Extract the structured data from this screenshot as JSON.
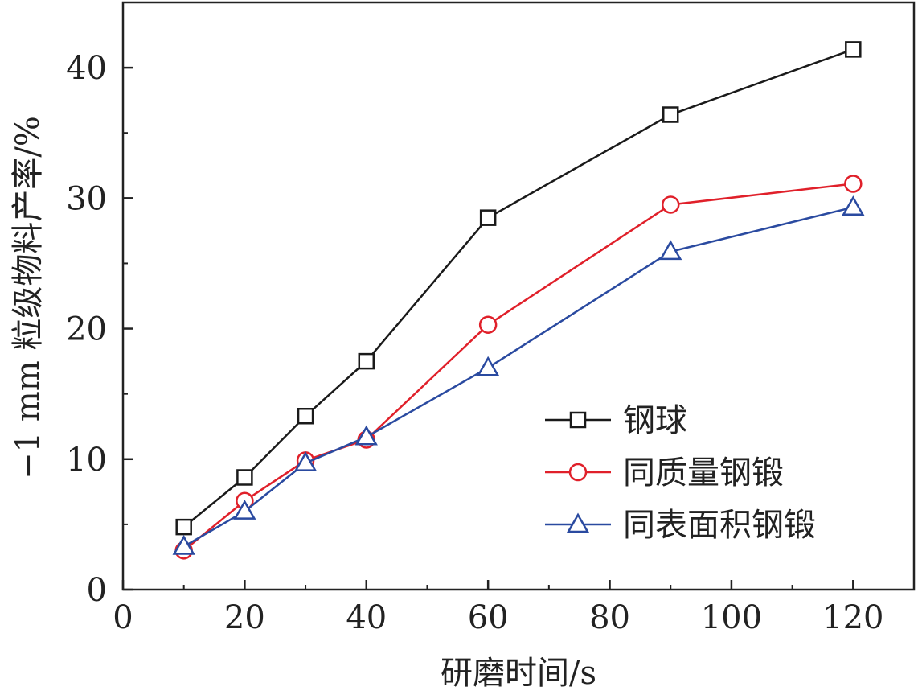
{
  "chart_data": {
    "type": "line",
    "title": "",
    "xlabel": "研磨时间/s",
    "ylabel": "−1 mm 粒级物料产率/%",
    "xlim": [
      0,
      130
    ],
    "ylim": [
      0,
      45
    ],
    "xticks": [
      0,
      20,
      40,
      60,
      80,
      100,
      120
    ],
    "yticks": [
      0,
      10,
      20,
      30,
      40
    ],
    "grid": false,
    "legend_position": "center-right",
    "x": [
      10,
      20,
      30,
      40,
      60,
      90,
      120
    ],
    "series": [
      {
        "name": "钢球",
        "color": "#1a1a1a",
        "marker": "square",
        "values": [
          4.8,
          8.6,
          13.3,
          17.5,
          28.5,
          36.4,
          41.4
        ]
      },
      {
        "name": "同质量钢锻",
        "color": "#e0202a",
        "marker": "circle",
        "values": [
          3.0,
          6.8,
          9.9,
          11.5,
          20.3,
          29.5,
          31.1
        ]
      },
      {
        "name": "同表面积钢锻",
        "color": "#2a4aa0",
        "marker": "triangle",
        "values": [
          3.3,
          6.0,
          9.7,
          11.7,
          17.0,
          25.9,
          29.3
        ]
      }
    ]
  }
}
